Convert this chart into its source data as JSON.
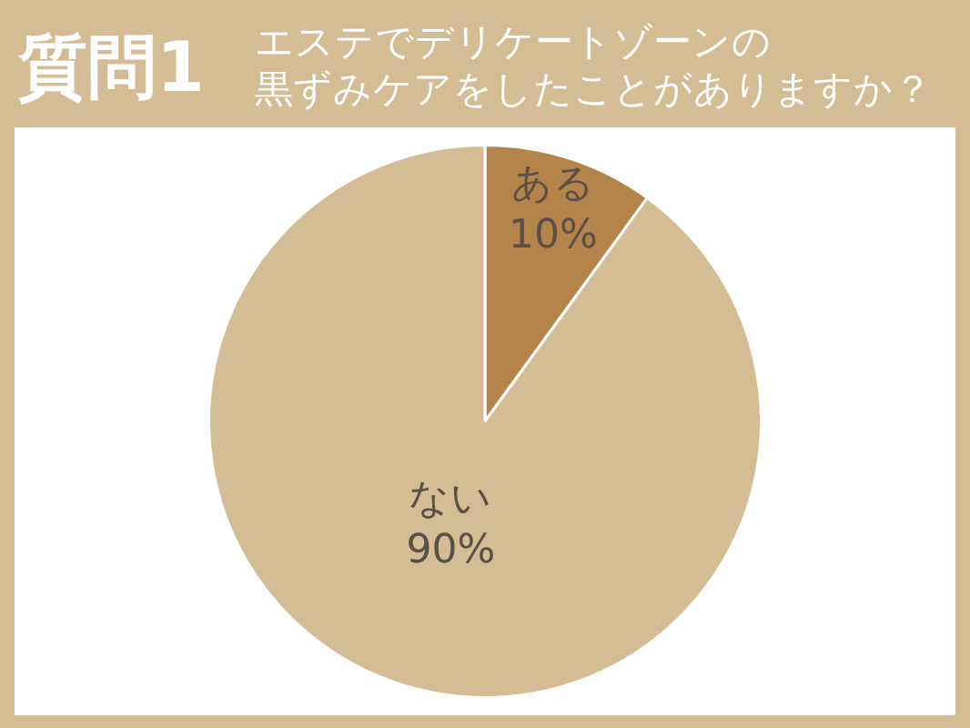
{
  "chart_data": {
    "type": "pie",
    "title": "質問1",
    "subtitle": "エステでデリケートゾーンの黒ずみケアをしたことがありますか？",
    "categories": [
      "ある",
      "ない"
    ],
    "values": [
      10,
      90
    ],
    "value_labels": [
      "10%",
      "90%"
    ],
    "colors": [
      "#b5844b",
      "#d4bc94"
    ],
    "legend": false
  }
}
